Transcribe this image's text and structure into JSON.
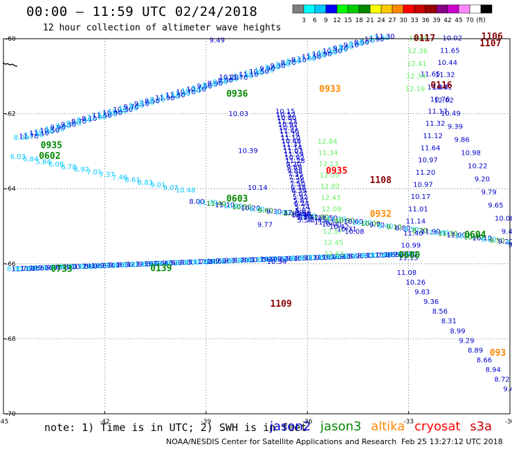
{
  "header": {
    "title": "00:00 – 11:59 UTC 02/24/2018",
    "subtitle": "12 hour collection of altimeter wave heights"
  },
  "colorbar": {
    "swatches": [
      "#808080",
      "#00ffff",
      "#00c8ff",
      "#0000ff",
      "#00ff00",
      "#00cc00",
      "#008800",
      "#ffff00",
      "#ffc800",
      "#ff8800",
      "#ff0000",
      "#cc0000",
      "#990000",
      "#880088",
      "#cc00cc",
      "#ff88ff",
      "#ffffff",
      "#000000"
    ],
    "labels": [
      "3",
      "6",
      "9",
      "12",
      "15",
      "18",
      "21",
      "24",
      "27",
      "30",
      "33",
      "36",
      "39",
      "42",
      "45",
      "70",
      "(ft)"
    ]
  },
  "map": {
    "lon_ticks": [
      "-45",
      "-42",
      "-39",
      "-36",
      "-33",
      "-30"
    ],
    "lat_ticks": [
      "-60",
      "-62",
      "-64",
      "-66",
      "-68",
      "-70"
    ],
    "grid_lon": [
      -42,
      -39,
      -36,
      -33
    ],
    "grid_lat": [
      -62,
      -64,
      -66,
      -68
    ],
    "extent": {
      "lon": [
        -45,
        -30
      ],
      "lat": [
        -70,
        -60
      ]
    }
  },
  "satellite_colors": {
    "jason2": "#0000cc",
    "jason3": "#008800",
    "altika": "#ff8800",
    "cryosat": "#ff0000",
    "s3a": "#cc0000"
  },
  "height_colors": {
    "light_blue": "#00c8ff",
    "light_green": "#66ee66",
    "dark_blue": "#0000cc",
    "dark_red": "#880000"
  },
  "pass_times": [
    {
      "text": "0117",
      "lon": -32.85,
      "lat": -60.06,
      "color": "#880000"
    },
    {
      "text": "1106",
      "lon": -30.85,
      "lat": -60.02,
      "color": "#880000"
    },
    {
      "text": "1107",
      "lon": -30.9,
      "lat": -60.2,
      "color": "#880000"
    },
    {
      "text": "0116",
      "lon": -32.35,
      "lat": -61.32,
      "color": "#880000"
    },
    {
      "text": "0933",
      "lon": -35.65,
      "lat": -61.42,
      "color": "#ff8800"
    },
    {
      "text": "0936",
      "lon": -38.4,
      "lat": -61.55,
      "color": "#008800"
    },
    {
      "text": "0935",
      "lon": -43.9,
      "lat": -62.92,
      "color": "#008800"
    },
    {
      "text": "0602",
      "lon": -43.95,
      "lat": -63.2,
      "color": "#008800"
    },
    {
      "text": "0935",
      "lon": -35.45,
      "lat": -63.6,
      "color": "#ff0000"
    },
    {
      "text": "1108",
      "lon": -34.15,
      "lat": -63.85,
      "color": "#880000"
    },
    {
      "text": "0603",
      "lon": -38.4,
      "lat": -64.35,
      "color": "#008800"
    },
    {
      "text": "0932",
      "lon": -34.15,
      "lat": -64.75,
      "color": "#ff8800"
    },
    {
      "text": "0604",
      "lon": -31.35,
      "lat": -65.3,
      "color": "#008800"
    },
    {
      "text": "0600",
      "lon": -33.3,
      "lat": -65.85,
      "color": "#008800"
    },
    {
      "text": "0733",
      "lon": -43.6,
      "lat": -66.22,
      "color": "#008800"
    },
    {
      "text": "0139",
      "lon": -40.65,
      "lat": -66.2,
      "color": "#008800"
    },
    {
      "text": "1109",
      "lon": -37.1,
      "lat": -67.15,
      "color": "#880000"
    },
    {
      "text": "093",
      "lon": -30.6,
      "lat": -68.45,
      "color": "#ff8800"
    }
  ],
  "tracks": [
    {
      "name": "track-a",
      "color": "#0000cc",
      "start": [
        -38.9,
        -60.1
      ],
      "end": [
        -37.2,
        -66.0
      ],
      "values": [
        "9.49",
        "10.20",
        "10.03",
        "10.39",
        "10.14",
        "9.77",
        "10.34"
      ]
    },
    {
      "name": "track-b",
      "color": "#0000cc",
      "start": [
        -36.95,
        -62.0
      ],
      "end": [
        -36.3,
        -64.9
      ],
      "values": [
        "10.15",
        "10.52",
        "10.80",
        "11.23",
        "10.92",
        "10.91",
        "11.46",
        "11.74",
        "11.10",
        "10.48",
        "11.31",
        "11.14",
        "11.03",
        "11.59",
        "10.92",
        "11.28",
        "9.20",
        "9.89",
        "9.88",
        "7.35",
        "7.56",
        "7.26",
        "7.50",
        "6.38",
        "6.39",
        "7.07",
        "5.92",
        "5.87",
        "6.24",
        "5.74",
        "5.82",
        "5.58",
        "5.50",
        "5.54"
      ]
    },
    {
      "name": "track-c",
      "color": "#0000cc",
      "start": [
        -32.0,
        -60.05
      ],
      "end": [
        -33.3,
        -65.9
      ],
      "values": [
        "10.02",
        "11.65",
        "10.44",
        "11.32",
        "10.82",
        "10.76",
        "11.17",
        "11.32",
        "11.12",
        "11.64",
        "10.97",
        "11.20",
        "10.97",
        "10.17",
        "11.01",
        "11.14",
        "11.40",
        "10.99",
        "11.15"
      ]
    },
    {
      "name": "track-d",
      "color": "#0000cc",
      "start": [
        -32.65,
        -61.0
      ],
      "end": [
        -30.05,
        -65.55
      ],
      "values": [
        "11.65",
        "11.84",
        "12.02",
        "10.49",
        "9.39",
        "9.86",
        "10.98",
        "10.22",
        "9.20",
        "9.79",
        "9.65",
        "10.08",
        "9.49",
        "9.12"
      ]
    },
    {
      "name": "track-e",
      "color": "#0000cc",
      "start": [
        -33.35,
        -66.3
      ],
      "end": [
        -30.2,
        -69.4
      ],
      "values": [
        "11.08",
        "10.26",
        "9.83",
        "9.36",
        "8.56",
        "8.31",
        "8.99",
        "9.29",
        "8.89",
        "8.66",
        "8.94",
        "8.72",
        "9.43"
      ]
    },
    {
      "name": "track-f",
      "color": "#00c8ff",
      "start": [
        -44.8,
        -63.2
      ],
      "end": [
        -39.9,
        -64.1
      ],
      "values": [
        "6.03",
        "6.84",
        "5.84",
        "6.08",
        "6.78",
        "6.92",
        "7.01",
        "7.37",
        "7.46",
        "8.61",
        "8.83",
        "9.01",
        "9.07",
        "10.48"
      ]
    },
    {
      "name": "track-g",
      "color": "#66ee66",
      "start": [
        -33.0,
        -60.05
      ],
      "end": [
        -33.1,
        -61.4
      ],
      "values": [
        "12.85",
        "12.36",
        "12.41",
        "12.34",
        "12.19"
      ]
    },
    {
      "name": "track-h",
      "color": "#66ee66",
      "start": [
        -35.7,
        -62.8
      ],
      "end": [
        -35.5,
        -65.8
      ],
      "values": [
        "12.84",
        "11.34",
        "12.13",
        "12.05",
        "12.02",
        "12.43",
        "12.09",
        "12.04",
        "12.57",
        "12.45",
        "12.63"
      ]
    },
    {
      "name": "track-i",
      "color": "#0000cc",
      "start": [
        -36.7,
        -64.7
      ],
      "end": [
        -34.9,
        -65.2
      ],
      "values": [
        "12.00",
        "12.46",
        "12.42",
        "11.65",
        "11.62",
        "10.00",
        "10.42",
        "10.31",
        "10.08"
      ]
    }
  ],
  "dense_tracks": [
    {
      "name": "dense-upper",
      "colors": [
        "#00c8ff",
        "#0000cc"
      ],
      "start": [
        -44.7,
        -62.7
      ],
      "end": [
        -34.0,
        -60.0
      ],
      "count": 70
    },
    {
      "name": "dense-middle",
      "colors": [
        "#0000cc",
        "#00c8ff",
        "#008800"
      ],
      "start": [
        -39.5,
        -64.4
      ],
      "end": [
        -30.1,
        -65.5
      ],
      "count": 38
    },
    {
      "name": "dense-lower",
      "colors": [
        "#00c8ff",
        "#0000cc"
      ],
      "start": [
        -44.9,
        -66.2
      ],
      "end": [
        -33.2,
        -65.8
      ],
      "count": 90
    }
  ],
  "footer": {
    "note": "note: 1) Time is in UTC; 2) SWH is in feet",
    "legend": [
      {
        "label": "jason2",
        "color": "#0000cc"
      },
      {
        "label": "jason3",
        "color": "#008800"
      },
      {
        "label": "altika",
        "color": "#ff8800"
      },
      {
        "label": "cryosat",
        "color": "#ff0000"
      },
      {
        "label": "s3a",
        "color": "#cc0000"
      }
    ],
    "credit": "NOAA/NESDIS Center for Satellite Applications and Research",
    "timestamp": "Feb 25 13:27:12 UTC 2018"
  }
}
